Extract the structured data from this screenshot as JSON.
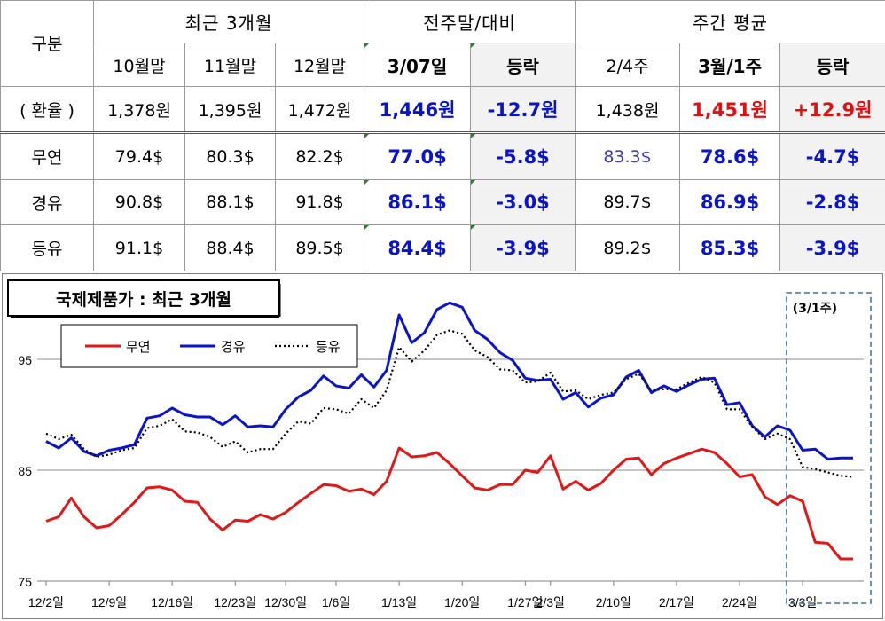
{
  "table": {
    "groups": {
      "recent": "최근 3개월",
      "prev_week": "전주말/대비",
      "weekly_avg": "주간 평균"
    },
    "columns": [
      "구분",
      "10월말",
      "11월말",
      "12월말",
      "3/07일",
      "등락",
      "2/4주",
      "3월/1주",
      "등락"
    ],
    "rows": [
      {
        "label": "( 환율 )",
        "cells": [
          "1,378원",
          "1,395원",
          "1,472원",
          "1,446원",
          "-12.7원",
          "1,438원",
          "1,451원",
          "+12.9원"
        ]
      },
      {
        "label": "무연",
        "cells": [
          "79.4$",
          "80.3$",
          "82.2$",
          "77.0$",
          "-5.8$",
          "83.3$",
          "78.6$",
          "-4.7$"
        ]
      },
      {
        "label": "경유",
        "cells": [
          "90.8$",
          "88.1$",
          "91.8$",
          "86.1$",
          "-3.0$",
          "89.7$",
          "86.9$",
          "-2.8$"
        ]
      },
      {
        "label": "등유",
        "cells": [
          "91.1$",
          "88.4$",
          "89.5$",
          "84.4$",
          "-3.9$",
          "89.2$",
          "85.3$",
          "-3.9$"
        ]
      }
    ]
  },
  "colors": {
    "gasoline": "#e01818",
    "diesel": "#0a14c8",
    "kerosene": "#000000",
    "value_blue": "#0a14c8",
    "value_red": "#e01010"
  },
  "chart_data": {
    "type": "line",
    "title": "국제제품가 : 최근 3개월",
    "annotation": "(3/1주)",
    "legend_position": "top-left",
    "grid": true,
    "ylim": [
      75,
      101
    ],
    "yticks": [
      75,
      85,
      95
    ],
    "xticks": [
      "12/2일",
      "12/9일",
      "12/16일",
      "12/23일",
      "12/30일",
      "1/6일",
      "1/13일",
      "1/20일",
      "1/27일",
      "2/3일",
      "2/10일",
      "2/17일",
      "2/24일",
      "3/3일"
    ],
    "x": [
      "12/2",
      "12/3",
      "12/4",
      "12/5",
      "12/6",
      "12/9",
      "12/10",
      "12/11",
      "12/12",
      "12/13",
      "12/16",
      "12/17",
      "12/18",
      "12/19",
      "12/20",
      "12/23",
      "12/24",
      "12/26",
      "12/27",
      "12/30",
      "12/31",
      "1/2",
      "1/3",
      "1/6",
      "1/7",
      "1/8",
      "1/9",
      "1/10",
      "1/13",
      "1/14",
      "1/15",
      "1/16",
      "1/17",
      "1/20",
      "1/21",
      "1/22",
      "1/23",
      "1/24",
      "1/27",
      "1/31",
      "2/3",
      "2/4",
      "2/5",
      "2/6",
      "2/7",
      "2/10",
      "2/11",
      "2/12",
      "2/13",
      "2/14",
      "2/17",
      "2/18",
      "2/19",
      "2/20",
      "2/21",
      "2/24",
      "2/25",
      "2/26",
      "2/27",
      "2/28",
      "3/3",
      "3/4",
      "3/5",
      "3/6",
      "3/7"
    ],
    "series": [
      {
        "name": "무연",
        "style": "solid",
        "values": [
          80.4,
          80.8,
          82.5,
          80.8,
          79.8,
          80.0,
          81.0,
          82.1,
          83.4,
          83.5,
          83.2,
          82.2,
          82.1,
          80.6,
          79.6,
          80.5,
          80.4,
          81.0,
          80.6,
          81.2,
          82.1,
          82.9,
          83.7,
          83.6,
          83.1,
          83.3,
          82.8,
          84.0,
          87.0,
          86.2,
          86.3,
          86.6,
          85.6,
          84.5,
          83.4,
          83.2,
          83.7,
          83.7,
          85.0,
          84.8,
          86.3,
          83.3,
          84.0,
          83.2,
          83.8,
          85.0,
          86.0,
          86.1,
          84.6,
          85.6,
          86.1,
          86.5,
          86.9,
          86.6,
          85.6,
          84.4,
          84.6,
          82.6,
          81.9,
          82.7,
          82.2,
          78.5,
          78.4,
          77.0,
          77.0
        ]
      },
      {
        "name": "경유",
        "style": "solid",
        "values": [
          87.6,
          87.0,
          87.9,
          86.7,
          86.3,
          86.8,
          87.0,
          87.3,
          89.7,
          89.9,
          90.6,
          90.0,
          89.8,
          89.8,
          89.1,
          89.9,
          88.9,
          89.0,
          88.9,
          90.5,
          91.6,
          92.2,
          93.5,
          92.6,
          92.4,
          93.6,
          92.5,
          94.0,
          99.0,
          96.5,
          97.4,
          99.5,
          100.1,
          99.7,
          97.6,
          96.8,
          95.6,
          94.9,
          93.3,
          93.1,
          93.2,
          91.4,
          92.0,
          90.7,
          91.5,
          91.8,
          93.4,
          94.0,
          92.0,
          92.6,
          92.1,
          92.7,
          93.2,
          93.3,
          90.9,
          91.1,
          89.0,
          88.0,
          89.0,
          88.6,
          86.8,
          86.9,
          86.0,
          86.1,
          86.1
        ]
      },
      {
        "name": "등유",
        "style": "dotted",
        "values": [
          88.3,
          87.8,
          88.2,
          86.9,
          86.2,
          86.4,
          86.8,
          87.0,
          88.8,
          89.0,
          89.6,
          88.5,
          88.4,
          88.0,
          87.1,
          87.6,
          86.6,
          86.9,
          86.9,
          88.3,
          89.4,
          89.2,
          90.6,
          90.5,
          90.1,
          91.4,
          90.6,
          92.2,
          96.1,
          94.8,
          95.8,
          97.2,
          97.6,
          97.3,
          95.8,
          95.2,
          94.1,
          94.0,
          92.9,
          93.0,
          93.8,
          92.1,
          92.2,
          91.4,
          91.8,
          92.0,
          93.2,
          93.7,
          92.2,
          92.3,
          92.3,
          92.9,
          93.4,
          92.9,
          90.5,
          90.5,
          88.9,
          87.8,
          88.3,
          87.8,
          85.3,
          85.1,
          84.8,
          84.5,
          84.4
        ]
      }
    ]
  }
}
